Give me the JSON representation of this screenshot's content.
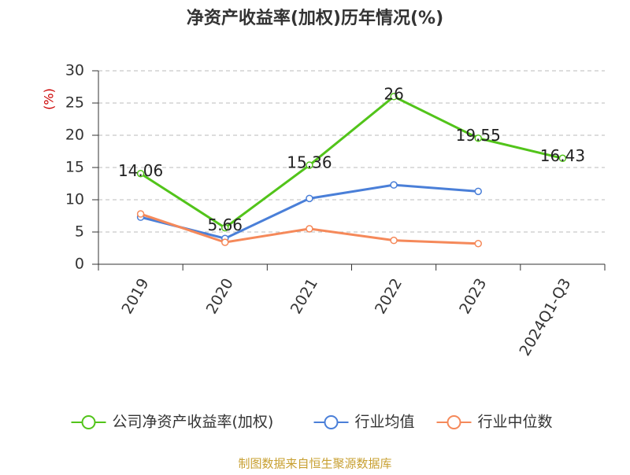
{
  "chart_data": {
    "type": "line",
    "title": "净资产收益率(加权)历年情况(%)",
    "y_label": "(%)",
    "categories": [
      "2019",
      "2020",
      "2021",
      "2022",
      "2023",
      "2024Q1-Q3"
    ],
    "series": [
      {
        "name": "公司净资产收益率(加权)",
        "color": "#52c41a",
        "values": [
          14.06,
          5.66,
          15.36,
          26,
          19.55,
          16.43
        ],
        "show_labels": true
      },
      {
        "name": "行业均值",
        "color": "#4a7fd8",
        "values": [
          7.3,
          4.0,
          10.2,
          12.3,
          11.3,
          null
        ]
      },
      {
        "name": "行业中位数",
        "color": "#f5895a",
        "values": [
          7.8,
          3.4,
          5.5,
          3.7,
          3.2,
          null
        ]
      }
    ],
    "ylim": [
      0,
      30
    ],
    "yticks": [
      0,
      5,
      10,
      15,
      20,
      25,
      30
    ],
    "grid": true,
    "legend": "bottom",
    "source": "制图数据来自恒生聚源数据库"
  }
}
